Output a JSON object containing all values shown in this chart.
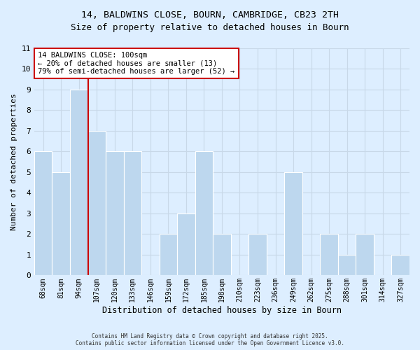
{
  "title_line1": "14, BALDWINS CLOSE, BOURN, CAMBRIDGE, CB23 2TH",
  "title_line2": "Size of property relative to detached houses in Bourn",
  "xlabel": "Distribution of detached houses by size in Bourn",
  "ylabel": "Number of detached properties",
  "bin_labels": [
    "68sqm",
    "81sqm",
    "94sqm",
    "107sqm",
    "120sqm",
    "133sqm",
    "146sqm",
    "159sqm",
    "172sqm",
    "185sqm",
    "198sqm",
    "210sqm",
    "223sqm",
    "236sqm",
    "249sqm",
    "262sqm",
    "275sqm",
    "288sqm",
    "301sqm",
    "314sqm",
    "327sqm"
  ],
  "bar_heights": [
    6,
    5,
    9,
    7,
    6,
    6,
    0,
    2,
    3,
    6,
    2,
    0,
    2,
    0,
    5,
    0,
    2,
    1,
    2,
    0,
    1
  ],
  "bar_color": "#bdd7ee",
  "bar_edge_color": "#ffffff",
  "grid_color": "#c8d8e8",
  "background_color": "#ddeeff",
  "vline_x_index": 2.5,
  "vline_color": "#cc0000",
  "annotation_text": "14 BALDWINS CLOSE: 100sqm\n← 20% of detached houses are smaller (13)\n79% of semi-detached houses are larger (52) →",
  "annotation_box_color": "#ffffff",
  "annotation_box_edge": "#cc0000",
  "ylim": [
    0,
    11
  ],
  "yticks": [
    0,
    1,
    2,
    3,
    4,
    5,
    6,
    7,
    8,
    9,
    10,
    11
  ],
  "footer_line1": "Contains HM Land Registry data © Crown copyright and database right 2025.",
  "footer_line2": "Contains public sector information licensed under the Open Government Licence v3.0."
}
